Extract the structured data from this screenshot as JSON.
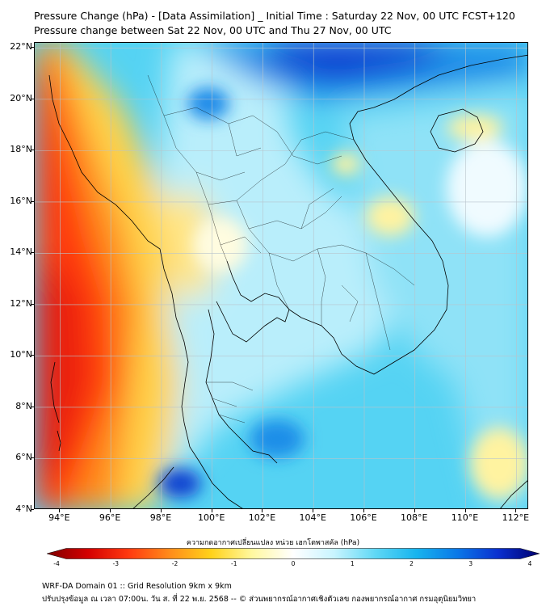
{
  "header": {
    "title_line1": "Pressure Change (hPa) - [Data Assimilation] _ Initial Time : Saturday 22 Nov, 00 UTC FCST+120",
    "title_line2": "Pressure change between Sat 22 Nov, 00 UTC and Thu 27 Nov, 00 UTC"
  },
  "map": {
    "extent": {
      "lon_min": 93,
      "lon_max": 112.5,
      "lat_min": 4,
      "lat_max": 22.2
    },
    "lat_ticks": [
      {
        "value": 22,
        "label": "22°N"
      },
      {
        "value": 20,
        "label": "20°N"
      },
      {
        "value": 18,
        "label": "18°N"
      },
      {
        "value": 16,
        "label": "16°N"
      },
      {
        "value": 14,
        "label": "14°N"
      },
      {
        "value": 12,
        "label": "12°N"
      },
      {
        "value": 10,
        "label": "10°N"
      },
      {
        "value": 8,
        "label": "8°N"
      },
      {
        "value": 6,
        "label": "6°N"
      },
      {
        "value": 4,
        "label": "4°N"
      }
    ],
    "lon_ticks": [
      {
        "value": 94,
        "label": "94°E"
      },
      {
        "value": 96,
        "label": "96°E"
      },
      {
        "value": 98,
        "label": "98°E"
      },
      {
        "value": 100,
        "label": "100°E"
      },
      {
        "value": 102,
        "label": "102°E"
      },
      {
        "value": 104,
        "label": "104°E"
      },
      {
        "value": 106,
        "label": "106°E"
      },
      {
        "value": 108,
        "label": "108°E"
      },
      {
        "value": 110,
        "label": "110°E"
      },
      {
        "value": 112,
        "label": "112°E"
      }
    ]
  },
  "colorbar": {
    "title": "ความกดอากาศเปลี่ยนแปลง หน่วย เฮกโตพาสคัล (hPa)",
    "min": -4,
    "max": 4,
    "ticks": [
      {
        "value": -4,
        "label": "-4"
      },
      {
        "value": -3,
        "label": "-3"
      },
      {
        "value": -2,
        "label": "-2"
      },
      {
        "value": -1,
        "label": "-1"
      },
      {
        "value": 0,
        "label": "0"
      },
      {
        "value": 1,
        "label": "1"
      },
      {
        "value": 2,
        "label": "2"
      },
      {
        "value": 3,
        "label": "3"
      },
      {
        "value": 4,
        "label": "4"
      }
    ],
    "colors": [
      "#7f0000",
      "#d40000",
      "#ff3a10",
      "#ff8c1a",
      "#ffd21a",
      "#fff8a0",
      "#ffffff",
      "#c8f4ff",
      "#5fd8f5",
      "#17b4ee",
      "#0a78e8",
      "#0a2fcf",
      "#00006e"
    ]
  },
  "footer": {
    "line1": "WRF-DA Domain 01 :: Grid Resolution 9km x 9km",
    "line2": "ปรับปรุงข้อมูล ณ เวลา 07:00น. วัน ส. ที่ 22 พ.ย. 2568 -- © ส่วนพยากรณ์อากาศเชิงตัวเลข กองพยากรณ์อากาศ กรมอุตุนิยมวิทยา"
  }
}
